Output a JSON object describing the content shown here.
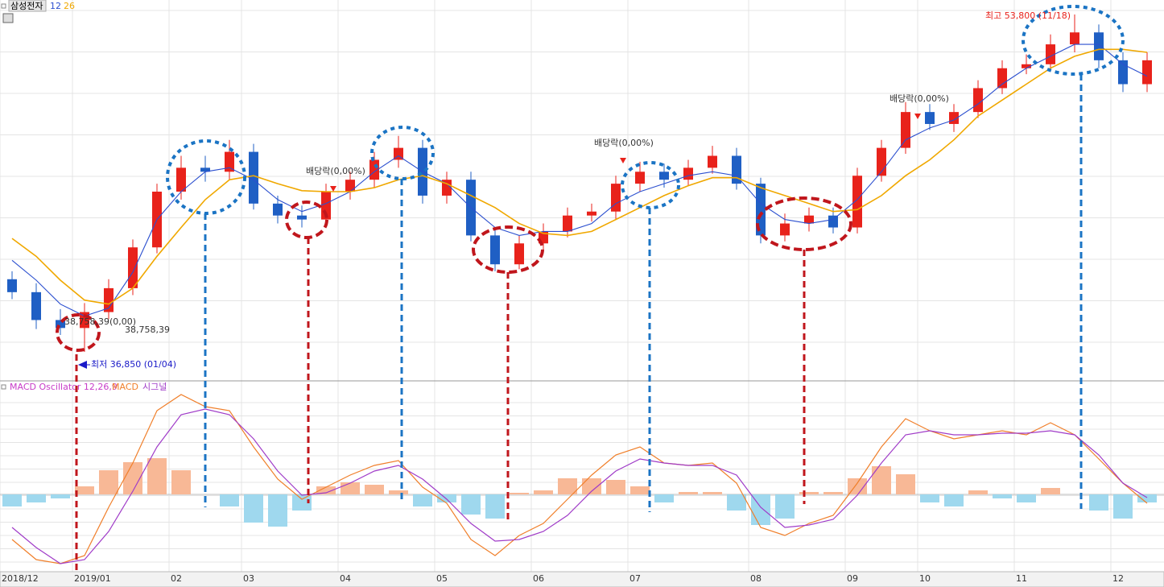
{
  "chart_data": [
    {
      "type": "candlestick",
      "title": "삼성전자",
      "categories": [
        "2018/12",
        null,
        null,
        "2019/01",
        null,
        null,
        null,
        "02",
        null,
        null,
        "03",
        null,
        null,
        null,
        "04",
        null,
        null,
        null,
        "05",
        null,
        null,
        null,
        "06",
        null,
        null,
        null,
        "07",
        null,
        null,
        null,
        null,
        "08",
        null,
        null,
        null,
        "09",
        null,
        null,
        "10",
        null,
        null,
        null,
        "11",
        null,
        null,
        null,
        "12",
        null
      ],
      "open": [
        40500,
        39850,
        38450,
        38050,
        38850,
        40050,
        42100,
        44900,
        46100,
        45900,
        46900,
        44300,
        43700,
        43500,
        44900,
        45500,
        46500,
        47100,
        44700,
        45500,
        42700,
        41250,
        42300,
        42900,
        43700,
        43900,
        45300,
        45900,
        45500,
        46100,
        46700,
        45300,
        42700,
        43300,
        43700,
        43100,
        45700,
        47100,
        48900,
        48300,
        48900,
        50100,
        51100,
        51300,
        52300,
        52900,
        51500,
        50300
      ],
      "high": [
        40900,
        40300,
        39000,
        39300,
        40500,
        42500,
        45300,
        46700,
        46700,
        47500,
        47300,
        44700,
        44200,
        45300,
        45900,
        46900,
        47700,
        47500,
        45900,
        45900,
        43100,
        42700,
        43300,
        44100,
        44300,
        45700,
        46400,
        46300,
        46500,
        47200,
        47100,
        45600,
        43800,
        44100,
        44100,
        46100,
        47500,
        49400,
        49300,
        49300,
        50500,
        51500,
        51800,
        52800,
        53800,
        53300,
        51900,
        51900
      ],
      "low": [
        39500,
        38000,
        37700,
        36850,
        38500,
        39700,
        41800,
        44500,
        45400,
        45500,
        44000,
        43300,
        43100,
        43200,
        44500,
        45100,
        46100,
        44300,
        44300,
        42400,
        40900,
        41000,
        42000,
        42600,
        43400,
        43500,
        44900,
        45100,
        45200,
        45800,
        45000,
        42300,
        42400,
        42900,
        42800,
        42800,
        45400,
        46800,
        48000,
        47900,
        48600,
        49800,
        50800,
        51000,
        51900,
        51100,
        49900,
        49900
      ],
      "close": [
        39850,
        38450,
        38050,
        38850,
        40050,
        42100,
        44900,
        46100,
        45900,
        46900,
        44300,
        43700,
        43500,
        44900,
        45500,
        46500,
        47100,
        44700,
        45500,
        42700,
        41250,
        42300,
        42900,
        43700,
        43900,
        45300,
        45900,
        45500,
        46100,
        46700,
        45300,
        42700,
        43300,
        43700,
        43100,
        45700,
        47100,
        48900,
        48300,
        48900,
        50100,
        51100,
        51300,
        52300,
        52900,
        51500,
        50300,
        51500
      ],
      "up_color": "#e8221b",
      "down_color": "#1f5fc4",
      "series": [
        {
          "name": "12",
          "color": "#2b4fcf",
          "values": [
            41450,
            40450,
            39250,
            38650,
            39050,
            40850,
            43500,
            44900,
            45900,
            46100,
            45500,
            44500,
            43900,
            44300,
            44900,
            45900,
            46700,
            45900,
            45300,
            44100,
            43100,
            42700,
            42900,
            42900,
            43300,
            44300,
            44900,
            45300,
            45700,
            45900,
            45700,
            44300,
            43500,
            43300,
            43500,
            44500,
            45900,
            47500,
            48100,
            48500,
            49300,
            50300,
            51100,
            51700,
            52300,
            52300,
            51300,
            50700
          ]
        },
        {
          "name": "26",
          "color": "#f0a800",
          "values": [
            42550,
            41650,
            40450,
            39450,
            39250,
            40050,
            41650,
            43100,
            44500,
            45500,
            45700,
            45300,
            44950,
            44900,
            44900,
            45100,
            45500,
            45700,
            45300,
            44700,
            44100,
            43300,
            42800,
            42700,
            42900,
            43500,
            44100,
            44700,
            45200,
            45600,
            45600,
            45100,
            44700,
            44300,
            43900,
            44000,
            44700,
            45700,
            46500,
            47500,
            48700,
            49500,
            50300,
            51100,
            51700,
            52050,
            52050,
            51900
          ]
        }
      ],
      "annotations": {
        "high_label": "최고 53,800 (11/18)",
        "low_label": "최저 36,850 (01/04)",
        "low_price_label": "38,758,39(0,00)",
        "low_price_label_2": "38,758,39",
        "dividend_labels": [
          "배당락(0,00%)",
          "배당락(0,00%)",
          "배당락(0,00%)"
        ]
      }
    },
    {
      "type": "macd",
      "series": [
        {
          "name": "MACD Oscillator 12,26,9",
          "color": "#c83cc8",
          "pos_color": "#f8b896",
          "neg_color": "#9fd8ee",
          "values": [
            -150,
            -100,
            -50,
            100,
            300,
            400,
            450,
            300,
            0,
            -150,
            -350,
            -400,
            -200,
            100,
            150,
            120,
            50,
            -150,
            -100,
            -250,
            -300,
            20,
            50,
            200,
            200,
            180,
            100,
            -100,
            30,
            30,
            -200,
            -380,
            -300,
            30,
            30,
            200,
            350,
            250,
            -100,
            -150,
            50,
            -50,
            -100,
            80,
            0,
            -200,
            -300,
            -100
          ]
        },
        {
          "name": "MACD",
          "color": "#f07f2a",
          "values": [
            -560,
            -810,
            -860,
            -760,
            -160,
            390,
            1040,
            1240,
            1090,
            1040,
            590,
            190,
            -60,
            90,
            240,
            360,
            420,
            90,
            -110,
            -560,
            -760,
            -510,
            -360,
            -60,
            240,
            490,
            590,
            390,
            360,
            390,
            140,
            -410,
            -510,
            -360,
            -260,
            140,
            590,
            940,
            790,
            690,
            740,
            790,
            740,
            890,
            740,
            440,
            140,
            -110
          ]
        },
        {
          "name": "시그널",
          "color": "#a03cc8",
          "values": [
            -410,
            -660,
            -860,
            -810,
            -460,
            40,
            590,
            990,
            1060,
            990,
            690,
            290,
            -10,
            20,
            140,
            290,
            360,
            190,
            -60,
            -360,
            -580,
            -560,
            -460,
            -260,
            40,
            290,
            440,
            390,
            360,
            360,
            240,
            -160,
            -410,
            -380,
            -310,
            -10,
            390,
            740,
            790,
            740,
            740,
            760,
            760,
            790,
            740,
            490,
            140,
            -40
          ]
        }
      ]
    }
  ]
}
